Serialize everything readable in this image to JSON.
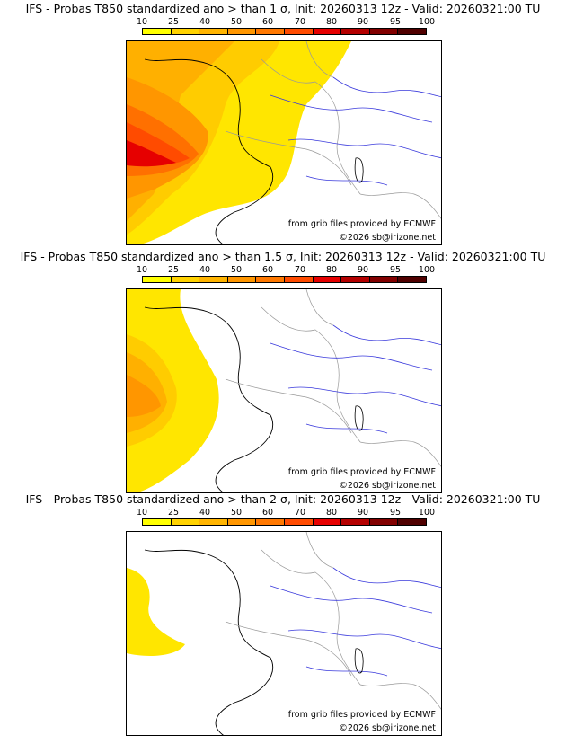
{
  "panels": [
    {
      "title": "IFS - Probas T850  standardized ano > than 1 σ, Init: 20260313 12z - Valid: 20260321:00 TU",
      "threshold": "1 σ"
    },
    {
      "title": "IFS - Probas T850  standardized ano > than 1.5 σ, Init: 20260313 12z - Valid: 20260321:00 TU",
      "threshold": "1.5 σ"
    },
    {
      "title": "IFS - Probas T850  standardized ano > than 2 σ, Init: 20260313 12z - Valid: 20260321:00 TU",
      "threshold": "2 σ"
    }
  ],
  "scale": {
    "labels": [
      "10",
      "25",
      "40",
      "50",
      "60",
      "70",
      "80",
      "90",
      "95",
      "100"
    ],
    "colors": [
      "#ffff00",
      "#ffd200",
      "#ffb400",
      "#ff9600",
      "#ff7800",
      "#ff4b00",
      "#e60000",
      "#b40000",
      "#820000",
      "#500000"
    ]
  },
  "credits": {
    "source": "from grib files provided by ECMWF",
    "copyright": "©2026 sb@irizone.net"
  }
}
